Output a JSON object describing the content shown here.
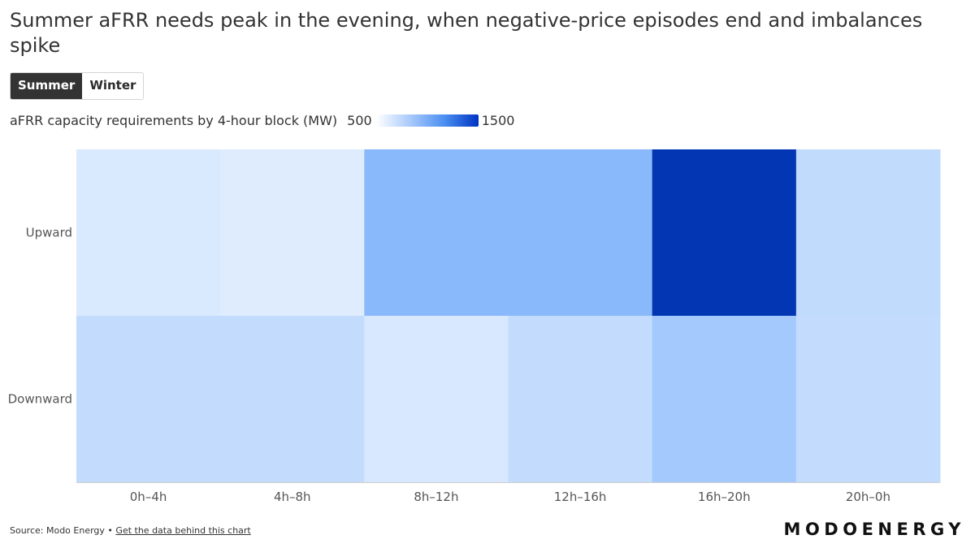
{
  "title": "Summer aFRR needs peak in the evening, when negative-price episodes end and imbalances spike",
  "toggle": {
    "options": [
      "Summer",
      "Winter"
    ],
    "selected": "Summer"
  },
  "legend": {
    "label": "aFRR capacity requirements by 4-hour block (MW)",
    "min_label": "500",
    "max_label": "1500"
  },
  "footer": {
    "source": "Source: Modo Energy •",
    "link": "Get the data behind this chart"
  },
  "logo": "MODOENERGY",
  "colors": {
    "scale_low": "#ffffff",
    "scale_mid": "#8cbcfc",
    "scale_high": "#0033b0"
  },
  "chart_data": {
    "type": "heatmap",
    "title": "aFRR capacity requirements by 4-hour block (MW)",
    "x_categories": [
      "0h–4h",
      "4h–8h",
      "8h–12h",
      "12h–16h",
      "16h–20h",
      "20h–0h"
    ],
    "y_categories": [
      "Upward",
      "Downward"
    ],
    "values": [
      [
        660,
        640,
        1010,
        1010,
        1490,
        770
      ],
      [
        760,
        760,
        670,
        760,
        900,
        760
      ]
    ],
    "color_range": [
      500,
      1500
    ],
    "xlabel": "",
    "ylabel": ""
  }
}
